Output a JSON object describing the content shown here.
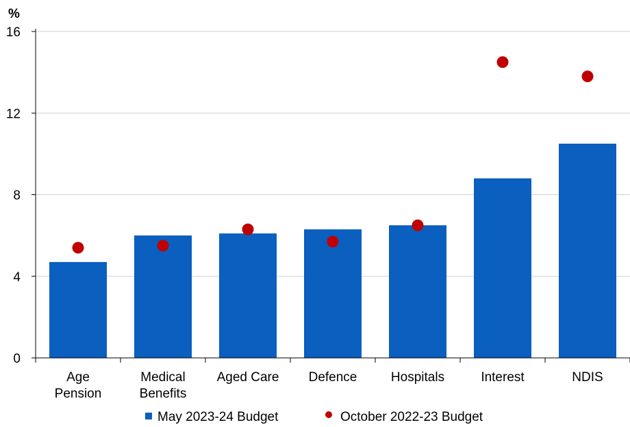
{
  "chart_data": {
    "type": "bar",
    "title": "",
    "unit_label": "%",
    "xlabel": "",
    "ylabel": "",
    "ylim": [
      0,
      16
    ],
    "yticks": [
      0,
      4,
      8,
      12,
      16
    ],
    "grid": true,
    "legend_position": "bottom",
    "categories": [
      [
        "Age",
        "Pension"
      ],
      [
        "Medical",
        "Benefits"
      ],
      [
        "Aged Care"
      ],
      [
        "Defence"
      ],
      [
        "Hospitals"
      ],
      [
        "Interest"
      ],
      [
        "NDIS"
      ]
    ],
    "series": [
      {
        "name": "May 2023-24 Budget",
        "type": "bar",
        "color": "#0a5fbf",
        "values": [
          4.7,
          6.0,
          6.1,
          6.3,
          6.5,
          8.8,
          10.5
        ]
      },
      {
        "name": "October 2022-23 Budget",
        "type": "scatter",
        "color": "#c00000",
        "values": [
          5.4,
          5.5,
          6.3,
          5.7,
          6.5,
          14.5,
          13.8
        ]
      }
    ]
  }
}
